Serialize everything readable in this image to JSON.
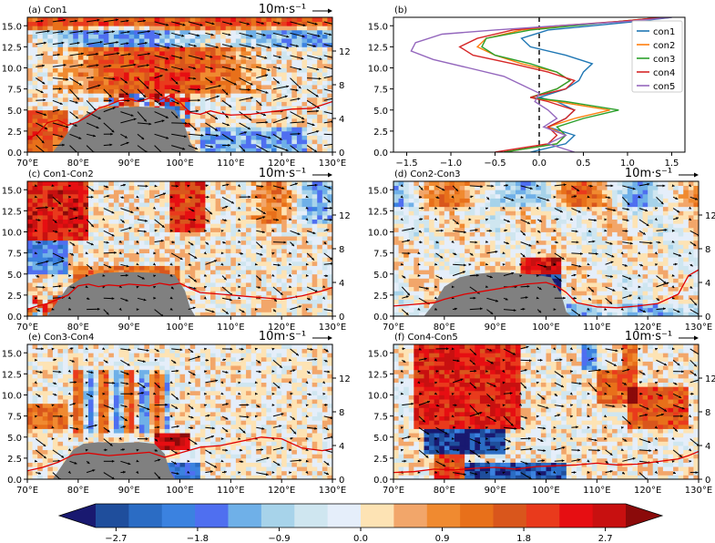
{
  "chart_data": [
    {
      "type": "heatmap",
      "title": "(a) Con1",
      "x_ticks": [
        "70°E",
        "80°E",
        "90°E",
        "100°E",
        "110°E",
        "120°E",
        "130°E"
      ],
      "y_ticks": [
        "0.0",
        "2.5",
        "5.0",
        "7.5",
        "10.0",
        "12.5",
        "15.0"
      ],
      "right_ticks": [
        "0",
        "4",
        "8",
        "12"
      ],
      "xlim": [
        70,
        130
      ],
      "ylim": [
        0,
        16
      ],
      "vector_key": "10m·s⁻¹",
      "terrain_km": [
        [
          70,
          0
        ],
        [
          75,
          0
        ],
        [
          77,
          1.5
        ],
        [
          79,
          3.2
        ],
        [
          82,
          4.7
        ],
        [
          85,
          5.2
        ],
        [
          88,
          5.3
        ],
        [
          92,
          5.4
        ],
        [
          96,
          5.3
        ],
        [
          99,
          5.0
        ],
        [
          101,
          3.0
        ],
        [
          102,
          1.2
        ],
        [
          103,
          0.2
        ],
        [
          104,
          0
        ],
        [
          130,
          0
        ]
      ],
      "red_line": [
        [
          70,
          1.5
        ],
        [
          72,
          2.2
        ],
        [
          74,
          3.5
        ],
        [
          76,
          3.8
        ],
        [
          78,
          3.2
        ],
        [
          80,
          3.6
        ],
        [
          82,
          4.3
        ],
        [
          84,
          5.2
        ],
        [
          86,
          5.6
        ],
        [
          88,
          6.1
        ],
        [
          90,
          6.3
        ],
        [
          92,
          6.0
        ],
        [
          94,
          6.4
        ],
        [
          96,
          6.2
        ],
        [
          98,
          6.7
        ],
        [
          100,
          5.9
        ],
        [
          102,
          4.7
        ],
        [
          104,
          4.5
        ],
        [
          106,
          4.9
        ],
        [
          108,
          4.6
        ],
        [
          110,
          4.4
        ],
        [
          114,
          4.5
        ],
        [
          118,
          4.8
        ],
        [
          122,
          5.1
        ],
        [
          126,
          5.2
        ],
        [
          130,
          6.0
        ]
      ]
    },
    {
      "type": "line",
      "title": "(b)",
      "x_ticks": [
        "−1.5",
        "−1.0",
        "−0.5",
        "0.0",
        "0.5",
        "1.0",
        "1.5"
      ],
      "y_ticks": [
        "0.0",
        "2.5",
        "5.0",
        "7.5",
        "10.0",
        "12.5",
        "15.0"
      ],
      "xlim": [
        -1.65,
        1.65
      ],
      "ylim": [
        0,
        16
      ],
      "series": [
        {
          "name": "con1",
          "color": "#1f77b4",
          "points": [
            [
              -0.1,
              0
            ],
            [
              0.3,
              1
            ],
            [
              0.4,
              2
            ],
            [
              0.1,
              3
            ],
            [
              0.3,
              4
            ],
            [
              0.4,
              5
            ],
            [
              0.2,
              6
            ],
            [
              0.0,
              6.5
            ],
            [
              0.3,
              7.5
            ],
            [
              0.45,
              8.5
            ],
            [
              0.5,
              9.5
            ],
            [
              0.6,
              10.5
            ],
            [
              0.3,
              11.5
            ],
            [
              -0.1,
              12.5
            ],
            [
              -0.2,
              13.5
            ],
            [
              0.1,
              14.5
            ],
            [
              0.6,
              15
            ],
            [
              1.1,
              15.5
            ],
            [
              1.5,
              16
            ]
          ]
        },
        {
          "name": "con2",
          "color": "#ff7f0e",
          "points": [
            [
              -0.4,
              0
            ],
            [
              0.2,
              1
            ],
            [
              0.3,
              2
            ],
            [
              0.1,
              3
            ],
            [
              0.4,
              4
            ],
            [
              0.8,
              5
            ],
            [
              0.2,
              6
            ],
            [
              -0.1,
              6.5
            ],
            [
              0.2,
              7.5
            ],
            [
              0.35,
              8.5
            ],
            [
              0.2,
              9.5
            ],
            [
              -0.2,
              10.5
            ],
            [
              -0.5,
              11.5
            ],
            [
              -0.7,
              12.5
            ],
            [
              -0.6,
              13.5
            ],
            [
              -0.2,
              14.5
            ],
            [
              0.3,
              15
            ],
            [
              0.9,
              15.5
            ],
            [
              1.4,
              16
            ]
          ]
        },
        {
          "name": "con3",
          "color": "#2ca02c",
          "points": [
            [
              -0.4,
              0
            ],
            [
              0.2,
              1
            ],
            [
              0.3,
              2
            ],
            [
              0.2,
              3
            ],
            [
              0.5,
              4
            ],
            [
              0.9,
              5
            ],
            [
              0.3,
              6
            ],
            [
              -0.1,
              6.5
            ],
            [
              0.2,
              7.5
            ],
            [
              0.35,
              8.5
            ],
            [
              0.2,
              9.5
            ],
            [
              -0.1,
              10.5
            ],
            [
              -0.5,
              11.5
            ],
            [
              -0.65,
              12.5
            ],
            [
              -0.6,
              13.5
            ],
            [
              -0.1,
              14.5
            ],
            [
              0.4,
              15
            ],
            [
              0.9,
              15.5
            ],
            [
              1.4,
              16
            ]
          ]
        },
        {
          "name": "con4",
          "color": "#d62728",
          "points": [
            [
              -0.5,
              0
            ],
            [
              0.1,
              1
            ],
            [
              0.2,
              2
            ],
            [
              0.1,
              3
            ],
            [
              0.3,
              4
            ],
            [
              0.4,
              5
            ],
            [
              0.1,
              6
            ],
            [
              -0.1,
              6.5
            ],
            [
              0.3,
              7.5
            ],
            [
              0.4,
              8.5
            ],
            [
              0.1,
              9.5
            ],
            [
              -0.3,
              10.5
            ],
            [
              -0.75,
              11.5
            ],
            [
              -0.9,
              12.5
            ],
            [
              -0.7,
              13.5
            ],
            [
              -0.3,
              14.5
            ],
            [
              0.2,
              15
            ],
            [
              0.9,
              15.5
            ],
            [
              1.4,
              16
            ]
          ]
        },
        {
          "name": "con5",
          "color": "#9467bd",
          "points": [
            [
              0.4,
              0
            ],
            [
              0.1,
              1
            ],
            [
              0.3,
              2
            ],
            [
              0.05,
              3
            ],
            [
              0.2,
              4
            ],
            [
              0.1,
              5
            ],
            [
              -0.05,
              6
            ],
            [
              0.0,
              7
            ],
            [
              -0.2,
              8
            ],
            [
              -0.4,
              9
            ],
            [
              -0.8,
              10
            ],
            [
              -1.2,
              11
            ],
            [
              -1.45,
              12
            ],
            [
              -1.4,
              13
            ],
            [
              -1.1,
              14
            ],
            [
              -0.5,
              14.5
            ],
            [
              0.2,
              15
            ],
            [
              1.0,
              15.5
            ],
            [
              1.5,
              16
            ]
          ]
        }
      ]
    },
    {
      "type": "heatmap",
      "title": "(c) Con1-Con2",
      "x_ticks": [
        "70°E",
        "80°E",
        "90°E",
        "100°E",
        "110°E",
        "120°E",
        "130°E"
      ],
      "y_ticks": [
        "0.0",
        "2.5",
        "5.0",
        "7.5",
        "10.0",
        "12.5",
        "15.0"
      ],
      "right_ticks": [
        "0",
        "4",
        "8",
        "12"
      ],
      "xlim": [
        70,
        130
      ],
      "ylim": [
        0,
        16
      ],
      "vector_key": "10m·s⁻¹",
      "terrain_km": [
        [
          70,
          0
        ],
        [
          74,
          0
        ],
        [
          76,
          1.8
        ],
        [
          78,
          3.5
        ],
        [
          81,
          4.6
        ],
        [
          84,
          5.1
        ],
        [
          88,
          5.2
        ],
        [
          92,
          5.2
        ],
        [
          96,
          5.1
        ],
        [
          99,
          4.9
        ],
        [
          101,
          3.0
        ],
        [
          102,
          1.0
        ],
        [
          103,
          0
        ],
        [
          130,
          0
        ]
      ],
      "red_line": [
        [
          70,
          0.8
        ],
        [
          72,
          1.2
        ],
        [
          74,
          1.5
        ],
        [
          76,
          2.0
        ],
        [
          78,
          2.5
        ],
        [
          80,
          3.6
        ],
        [
          82,
          3.8
        ],
        [
          84,
          3.5
        ],
        [
          86,
          3.7
        ],
        [
          88,
          3.6
        ],
        [
          90,
          3.8
        ],
        [
          92,
          3.7
        ],
        [
          94,
          3.6
        ],
        [
          96,
          3.9
        ],
        [
          98,
          3.7
        ],
        [
          100,
          3.9
        ],
        [
          102,
          3.3
        ],
        [
          104,
          2.8
        ],
        [
          108,
          2.6
        ],
        [
          112,
          2.4
        ],
        [
          116,
          2.2
        ],
        [
          120,
          2.0
        ],
        [
          124,
          2.4
        ],
        [
          128,
          3.0
        ],
        [
          130,
          3.4
        ]
      ]
    },
    {
      "type": "heatmap",
      "title": "(d) Con2-Con3",
      "x_ticks": [
        "70°E",
        "80°E",
        "90°E",
        "100°E",
        "110°E",
        "120°E",
        "130°E"
      ],
      "y_ticks": [
        "0.0",
        "2.5",
        "5.0",
        "7.5",
        "10.0",
        "12.5",
        "15.0"
      ],
      "right_ticks": [
        "0",
        "4",
        "8",
        "12"
      ],
      "xlim": [
        70,
        130
      ],
      "ylim": [
        0,
        16
      ],
      "vector_key": "10m·s⁻¹",
      "terrain_km": [
        [
          70,
          0
        ],
        [
          76,
          0
        ],
        [
          78,
          1.5
        ],
        [
          80,
          3.5
        ],
        [
          83,
          4.6
        ],
        [
          86,
          5.0
        ],
        [
          90,
          5.2
        ],
        [
          94,
          5.1
        ],
        [
          98,
          4.9
        ],
        [
          101,
          4.6
        ],
        [
          103,
          2.5
        ],
        [
          104,
          0.5
        ],
        [
          105,
          0
        ],
        [
          130,
          0
        ]
      ],
      "red_line": [
        [
          70,
          1.2
        ],
        [
          74,
          1.4
        ],
        [
          78,
          1.6
        ],
        [
          80,
          2.0
        ],
        [
          84,
          2.6
        ],
        [
          88,
          3.0
        ],
        [
          92,
          3.4
        ],
        [
          96,
          3.8
        ],
        [
          100,
          4.0
        ],
        [
          102,
          3.6
        ],
        [
          104,
          2.8
        ],
        [
          106,
          1.6
        ],
        [
          110,
          1.1
        ],
        [
          114,
          1.0
        ],
        [
          118,
          1.2
        ],
        [
          122,
          1.5
        ],
        [
          126,
          2.6
        ],
        [
          128,
          4.8
        ],
        [
          130,
          5.5
        ]
      ]
    },
    {
      "type": "heatmap",
      "title": "(e) Con3-Con4",
      "x_ticks": [
        "70°E",
        "80°E",
        "90°E",
        "100°E",
        "110°E",
        "120°E",
        "130°E"
      ],
      "y_ticks": [
        "0.0",
        "2.5",
        "5.0",
        "7.5",
        "10.0",
        "12.5",
        "15.0"
      ],
      "right_ticks": [
        "0",
        "4",
        "8",
        "12"
      ],
      "xlim": [
        70,
        130
      ],
      "ylim": [
        0,
        16
      ],
      "vector_key": "10m·s⁻¹",
      "terrain_km": [
        [
          70,
          0
        ],
        [
          75,
          0
        ],
        [
          77,
          1.8
        ],
        [
          79,
          3.5
        ],
        [
          81,
          4.2
        ],
        [
          84,
          4.4
        ],
        [
          88,
          4.3
        ],
        [
          92,
          4.4
        ],
        [
          95,
          4.2
        ],
        [
          97,
          3.0
        ],
        [
          98,
          1.0
        ],
        [
          99,
          0
        ],
        [
          130,
          0
        ]
      ],
      "red_line": [
        [
          70,
          1.0
        ],
        [
          73,
          1.4
        ],
        [
          76,
          2.0
        ],
        [
          79,
          2.9
        ],
        [
          82,
          3.1
        ],
        [
          86,
          2.8
        ],
        [
          90,
          3.0
        ],
        [
          94,
          3.2
        ],
        [
          97,
          2.6
        ],
        [
          100,
          3.1
        ],
        [
          104,
          3.8
        ],
        [
          108,
          4.0
        ],
        [
          112,
          4.5
        ],
        [
          116,
          5.0
        ],
        [
          120,
          4.8
        ],
        [
          124,
          3.7
        ],
        [
          128,
          3.4
        ],
        [
          130,
          3.6
        ]
      ]
    },
    {
      "type": "heatmap",
      "title": "(f) Con4-Con5",
      "x_ticks": [
        "70°E",
        "80°E",
        "90°E",
        "100°E",
        "110°E",
        "120°E",
        "130°E"
      ],
      "y_ticks": [
        "0.0",
        "2.5",
        "5.0",
        "7.5",
        "10.0",
        "12.5",
        "15.0"
      ],
      "right_ticks": [
        "0",
        "4",
        "8",
        "12"
      ],
      "xlim": [
        70,
        130
      ],
      "ylim": [
        0,
        16
      ],
      "vector_key": "10m·s⁻¹",
      "terrain_km": [],
      "red_line": [
        [
          70,
          0.8
        ],
        [
          74,
          0.9
        ],
        [
          78,
          1.2
        ],
        [
          82,
          1.1
        ],
        [
          86,
          1.3
        ],
        [
          90,
          1.4
        ],
        [
          94,
          1.2
        ],
        [
          98,
          1.5
        ],
        [
          102,
          1.6
        ],
        [
          106,
          1.7
        ],
        [
          110,
          1.9
        ],
        [
          114,
          1.7
        ],
        [
          118,
          1.8
        ],
        [
          122,
          2.1
        ],
        [
          126,
          2.4
        ],
        [
          128,
          2.8
        ],
        [
          130,
          3.3
        ]
      ]
    }
  ],
  "colorbar": {
    "tick_labels": [
      "−2.7",
      "−1.8",
      "−0.9",
      "0.0",
      "0.9",
      "1.8",
      "2.7"
    ],
    "colors": [
      "#191970",
      "#1f4e9c",
      "#2b6cc4",
      "#3b82e0",
      "#4f6ff0",
      "#6fb0e8",
      "#a7d3ea",
      "#cfe6f0",
      "#e5eefa",
      "#fde3b4",
      "#f2a66a",
      "#f08a30",
      "#e8701a",
      "#d9561c",
      "#e93a1c",
      "#e60e12",
      "#c81010",
      "#8b0a0a"
    ]
  }
}
